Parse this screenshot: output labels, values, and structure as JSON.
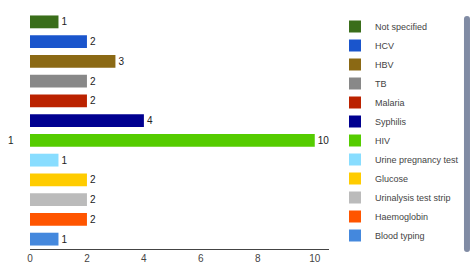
{
  "chart_data": {
    "type": "bar",
    "orientation": "horizontal",
    "categories": [
      "Not specified",
      "HCV",
      "HBV",
      "TB",
      "Malaria",
      "Syphilis",
      "HIV",
      "Urine pregnancy test",
      "Glucose",
      "Urinalysis test strip",
      "Haemoglobin",
      "Blood typing"
    ],
    "values": [
      1,
      2,
      3,
      2,
      2,
      4,
      10,
      1,
      2,
      2,
      2,
      1
    ],
    "colors": [
      "#3a6e1a",
      "#1a55cc",
      "#8b6914",
      "#888888",
      "#bb2200",
      "#000090",
      "#55cc00",
      "#88ddff",
      "#ffcc00",
      "#bbbbbb",
      "#ff5500",
      "#4488dd"
    ],
    "xlim": [
      0,
      10.5
    ],
    "xticks": [
      0,
      2,
      4,
      6,
      8,
      10
    ],
    "data_labels": true,
    "tick_labels": "x",
    "grid": false,
    "legend": "upper right",
    "annotations": [
      {
        "text": "1",
        "x": -0.5,
        "y": "HIV"
      }
    ]
  }
}
